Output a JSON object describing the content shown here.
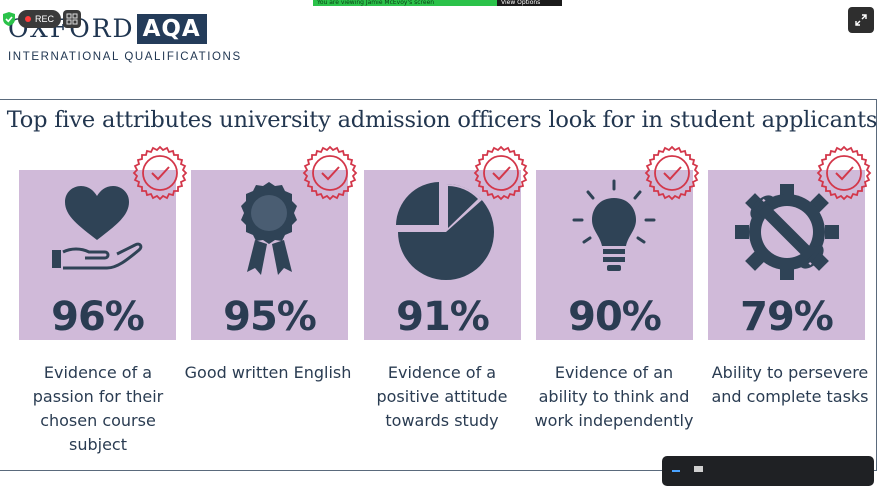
{
  "meeting": {
    "share_banner_text": "You are viewing Jamie McEvoy's screen",
    "view_options_label": "View Options",
    "rec_label": "REC"
  },
  "logo": {
    "word1": "OXFORD",
    "word2": "AQA",
    "subtitle": "INTERNATIONAL QUALIFICATIONS"
  },
  "slide": {
    "title": "Top five attributes university admission officers look for in student applicants",
    "items": [
      {
        "icon": "heart-in-hand-icon",
        "percent": "96%",
        "label": "Evidence of a passion for their chosen course subject"
      },
      {
        "icon": "award-rosette-icon",
        "percent": "95%",
        "label": "Good written English"
      },
      {
        "icon": "pie-chart-icon",
        "percent": "91%",
        "label": "Evidence of a positive attitude towards study"
      },
      {
        "icon": "light-bulb-icon",
        "percent": "90%",
        "label": "Evidence of an ability to think and work independently"
      },
      {
        "icon": "gear-wrench-icon",
        "percent": "79%",
        "label": "Ability to persevere and complete tasks"
      }
    ]
  },
  "colors": {
    "card_bg": "#d0bad9",
    "navy": "#2a3c52",
    "badge_red": "#d3374a"
  }
}
